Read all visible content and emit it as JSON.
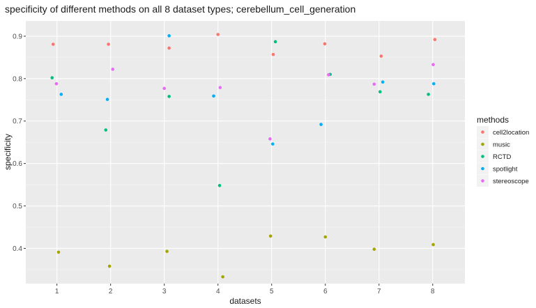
{
  "chart_data": {
    "type": "scatter",
    "title": "specificity of different methods on all 8 dataset types; cerebellum_cell_generation",
    "xlabel": "datasets",
    "ylabel": "specificity",
    "x_ticks": [
      1,
      2,
      3,
      4,
      5,
      6,
      7,
      8
    ],
    "y_ticks": [
      0.4,
      0.5,
      0.6,
      0.7,
      0.8,
      0.9
    ],
    "xlim": [
      0.42,
      8.6
    ],
    "ylim": [
      0.317,
      0.936
    ],
    "grid": true,
    "legend": {
      "title": "methods",
      "position": "right"
    },
    "series": [
      {
        "name": "cell2location",
        "color": "#F8766D",
        "points": [
          [
            0.93,
            0.881
          ],
          [
            1.96,
            0.881
          ],
          [
            3.09,
            0.872
          ],
          [
            4.0,
            0.904
          ],
          [
            5.03,
            0.857
          ],
          [
            5.99,
            0.882
          ],
          [
            7.04,
            0.853
          ],
          [
            8.04,
            0.892
          ]
        ]
      },
      {
        "name": "music",
        "color": "#A3A500",
        "points": [
          [
            1.03,
            0.391
          ],
          [
            1.98,
            0.358
          ],
          [
            3.05,
            0.393
          ],
          [
            4.09,
            0.333
          ],
          [
            4.98,
            0.429
          ],
          [
            6.0,
            0.427
          ],
          [
            6.91,
            0.398
          ],
          [
            8.01,
            0.409
          ]
        ]
      },
      {
        "name": "RCTD",
        "color": "#00BF7D",
        "points": [
          [
            0.91,
            0.802
          ],
          [
            1.91,
            0.679
          ],
          [
            3.09,
            0.758
          ],
          [
            4.03,
            0.548
          ],
          [
            5.07,
            0.887
          ],
          [
            6.09,
            0.81
          ],
          [
            7.02,
            0.769
          ],
          [
            7.92,
            0.763
          ]
        ]
      },
      {
        "name": "spotlight",
        "color": "#00B0F6",
        "points": [
          [
            1.08,
            0.763
          ],
          [
            1.94,
            0.751
          ],
          [
            3.09,
            0.901
          ],
          [
            3.92,
            0.759
          ],
          [
            5.02,
            0.646
          ],
          [
            5.92,
            0.692
          ],
          [
            7.07,
            0.792
          ],
          [
            8.02,
            0.788
          ]
        ]
      },
      {
        "name": "stereoscope",
        "color": "#E76BF3",
        "points": [
          [
            0.99,
            0.788
          ],
          [
            2.04,
            0.822
          ],
          [
            3.0,
            0.777
          ],
          [
            4.04,
            0.779
          ],
          [
            4.97,
            0.658
          ],
          [
            6.06,
            0.809
          ],
          [
            6.91,
            0.787
          ],
          [
            8.01,
            0.833
          ]
        ]
      }
    ]
  }
}
